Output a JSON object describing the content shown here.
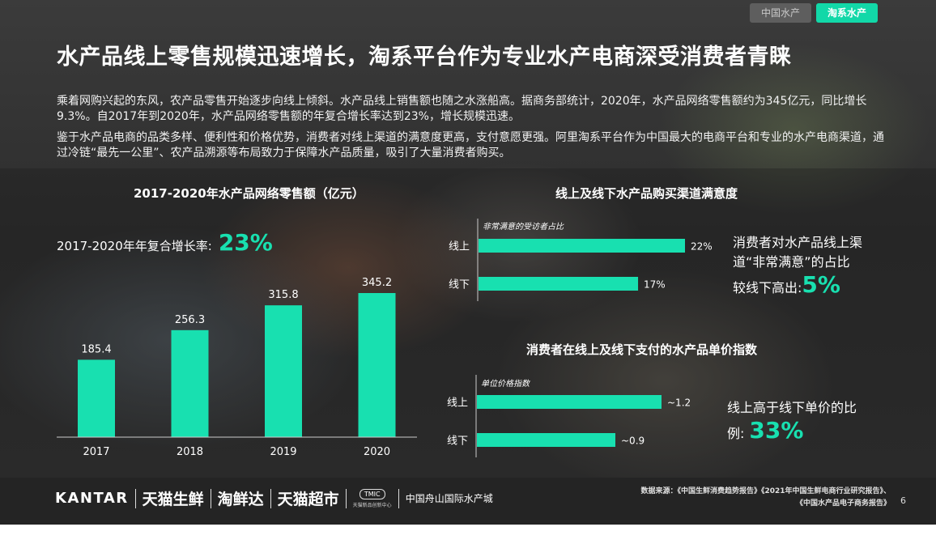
{
  "tabs": [
    {
      "label": "中国水产",
      "active": false
    },
    {
      "label": "淘系水产",
      "active": true
    }
  ],
  "title": "水产品线上零售规模迅速增长，淘系平台作为专业水产电商深受消费者青睐",
  "paragraphs": [
    "乘着网购兴起的东风，农产品零售开始逐步向线上倾斜。水产品线上销售额也随之水涨船高。据商务部统计，2020年，水产品网络零售额约为345亿元，同比增长9.3%。自2017年到2020年，水产品网络零售额的年复合增长率达到23%，增长规模迅速。",
    "鉴于水产品电商的品类多样、便利性和价格优势，消费者对线上渠道的满意度更高，支付意愿更强。阿里淘系平台作为中国最大的电商平台和专业的水产电商渠道，通过冷链“最先一公里”、农产品溯源等布局致力于保障水产品质量，吸引了大量消费者购买。"
  ],
  "cagr": {
    "label": "2017-2020年年复合增长率:",
    "value": "23%"
  },
  "satisfaction_note": {
    "line1": "消费者对水产品线上渠",
    "line2": "道“非常满意”的占比",
    "line3": "较线下高出:",
    "value": "5%"
  },
  "price_note": {
    "line1": "线上高于线下单价的比",
    "line2": "例:",
    "value": "33%"
  },
  "chart_data": [
    {
      "type": "bar",
      "title": "2017-2020年水产品网络零售额（亿元）",
      "categories": [
        "2017",
        "2018",
        "2019",
        "2020"
      ],
      "values": [
        185.4,
        256.3,
        315.8,
        345.2
      ],
      "value_labels": [
        "185.4",
        "256.3",
        "315.8",
        "345.2"
      ],
      "color": "#18e0b0"
    },
    {
      "type": "bar",
      "orientation": "horizontal",
      "title": "线上及线下水产品购买渠道满意度",
      "annotation": "非常满意的受访者占比",
      "categories": [
        "线上",
        "线下"
      ],
      "values": [
        22,
        17
      ],
      "value_labels": [
        "22%",
        "17%"
      ],
      "color": "#18e0b0"
    },
    {
      "type": "bar",
      "orientation": "horizontal",
      "title": "消费者在线上及线下支付的水产品单价指数",
      "annotation": "单位价格指数",
      "categories": [
        "线上",
        "线下"
      ],
      "values": [
        1.2,
        0.9
      ],
      "value_labels": [
        "~1.2",
        "~0.9"
      ],
      "color": "#18e0b0"
    }
  ],
  "footer": {
    "logos": [
      "KANTAR",
      "天猫生鲜",
      "淘鲜达",
      "天猫超市"
    ],
    "tmic_badge": "TMIC",
    "tmic_sub": "天猫新品创新中心",
    "partner": "中国舟山国际水产城",
    "source_line1": "数据来源：《中国生鲜消费趋势报告》《2021年中国生鲜电商行业研究报告》、",
    "source_line2": "《中国水产品电子商务报告》",
    "page_number": "6"
  }
}
